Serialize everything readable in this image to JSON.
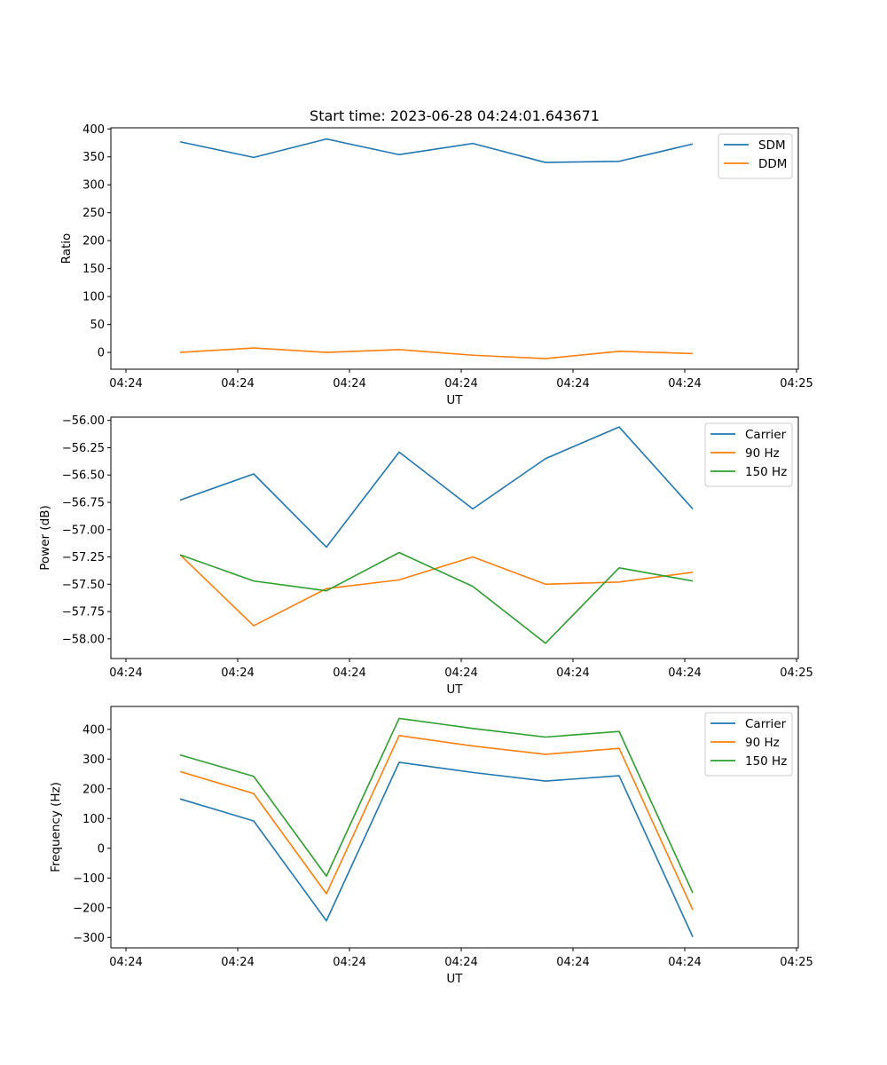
{
  "figure": {
    "title": "Start time: 2023-06-28 04:24:01.643671"
  },
  "chart_data": [
    {
      "type": "line",
      "title": "Start time: 2023-06-28 04:24:01.643671",
      "xlabel": "UT",
      "ylabel": "Ratio",
      "x_tick_labels": [
        "04:24",
        "04:24",
        "04:24",
        "04:24",
        "04:24",
        "04:24",
        "04:25"
      ],
      "y_ticks": [
        0,
        50,
        100,
        150,
        200,
        250,
        300,
        350,
        400
      ],
      "ylim": [
        -30,
        402
      ],
      "grid": false,
      "legend_position": "top-right",
      "series": [
        {
          "name": "SDM",
          "color": "#1f77b4",
          "values": [
            377,
            349,
            382,
            354,
            374,
            340,
            342,
            373
          ]
        },
        {
          "name": "DDM",
          "color": "#ff7f0e",
          "values": [
            0,
            8,
            0,
            5,
            -5,
            -11,
            2,
            -2
          ]
        }
      ]
    },
    {
      "type": "line",
      "xlabel": "UT",
      "ylabel": "Power (dB)",
      "x_tick_labels": [
        "04:24",
        "04:24",
        "04:24",
        "04:24",
        "04:24",
        "04:24",
        "04:25"
      ],
      "y_ticks": [
        -58.0,
        -57.75,
        -57.5,
        -57.25,
        -57.0,
        -56.75,
        -56.5,
        -56.25,
        -56.0
      ],
      "y_tick_labels": [
        "−58.00",
        "−57.75",
        "−57.50",
        "−57.25",
        "−57.00",
        "−56.75",
        "−56.50",
        "−56.25",
        "−56.00"
      ],
      "ylim": [
        -58.18,
        -55.97
      ],
      "grid": false,
      "legend_position": "top-right",
      "series": [
        {
          "name": "Carrier",
          "color": "#1f77b4",
          "values": [
            -56.73,
            -56.49,
            -57.16,
            -56.29,
            -56.81,
            -56.35,
            -56.06,
            -56.81
          ]
        },
        {
          "name": "90 Hz",
          "color": "#ff7f0e",
          "values": [
            -57.23,
            -57.88,
            -57.54,
            -57.46,
            -57.25,
            -57.5,
            -57.48,
            -57.39
          ]
        },
        {
          "name": "150 Hz",
          "color": "#2ca02c",
          "values": [
            -57.23,
            -57.47,
            -57.56,
            -57.21,
            -57.52,
            -58.04,
            -57.35,
            -57.47
          ]
        }
      ]
    },
    {
      "type": "line",
      "xlabel": "UT",
      "ylabel": "Frequency (Hz)",
      "x_tick_labels": [
        "04:24",
        "04:24",
        "04:24",
        "04:24",
        "04:24",
        "04:24",
        "04:25"
      ],
      "y_ticks": [
        -300,
        -200,
        -100,
        0,
        100,
        200,
        300,
        400
      ],
      "y_tick_labels": [
        "−300",
        "−200",
        "−100",
        "0",
        "100",
        "200",
        "300",
        "400"
      ],
      "ylim": [
        -335,
        477
      ],
      "grid": false,
      "legend_position": "top-right",
      "series": [
        {
          "name": "Carrier",
          "color": "#1f77b4",
          "values": [
            166,
            92,
            -244,
            289,
            255,
            226,
            244,
            -298
          ]
        },
        {
          "name": "90 Hz",
          "color": "#ff7f0e",
          "values": [
            258,
            184,
            -153,
            379,
            344,
            316,
            336,
            -207
          ]
        },
        {
          "name": "150 Hz",
          "color": "#2ca02c",
          "values": [
            314,
            242,
            -94,
            437,
            403,
            374,
            393,
            -150
          ]
        }
      ]
    }
  ]
}
